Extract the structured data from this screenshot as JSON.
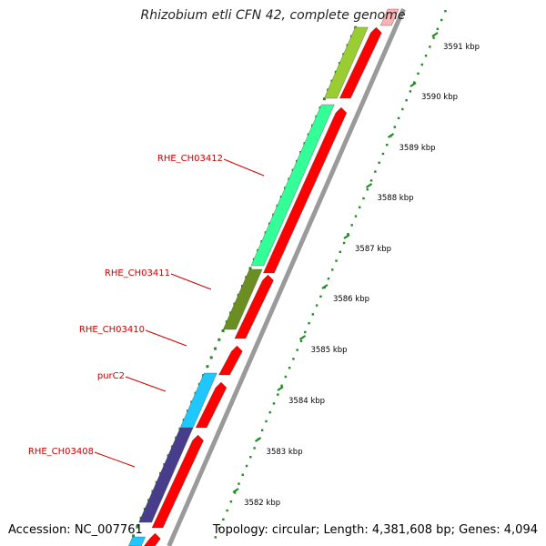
{
  "title": "Rhizobium etli CFN 42, complete genome",
  "footer": {
    "accession": "Accession: NC_007761",
    "summary": "Topology: circular; Length: 4,381,608 bp; Genes: 4,094"
  },
  "colors": {
    "label": "#cc0000",
    "tick": "#228b22",
    "kbp_text": "#000000",
    "backbone": "#9a9a9a",
    "forward_strand": "#ff0000"
  },
  "tick_labels": [
    "3591 kbp",
    "3590 kbp",
    "3589 kbp",
    "3588 kbp",
    "3587 kbp",
    "3586 kbp",
    "3585 kbp",
    "3584 kbp",
    "3583 kbp",
    "3582 kbp"
  ],
  "genes": [
    {
      "name": "RHE_CH03412",
      "color": "#33ff99"
    },
    {
      "name": "RHE_CH03411",
      "color": "#6b8e23"
    },
    {
      "name": "RHE_CH03410",
      "color": "#ff0000"
    },
    {
      "name": "purC2",
      "color": "#1ec8ff"
    },
    {
      "name": "RHE_CH03408",
      "color": "#483d8b"
    }
  ]
}
